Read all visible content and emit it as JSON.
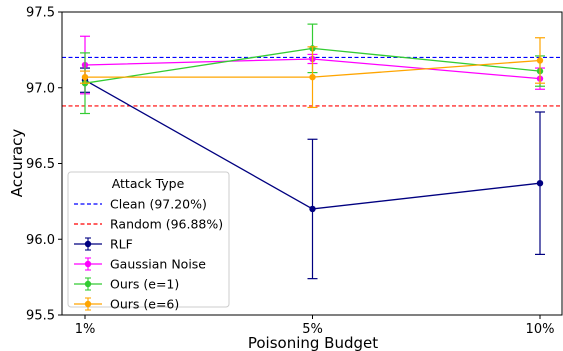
{
  "chart_data": {
    "type": "line",
    "title": "",
    "xlabel": "Poisoning Budget",
    "ylabel": "Accuracy",
    "categories": [
      "1%",
      "5%",
      "10%"
    ],
    "ylim": [
      95.5,
      97.5
    ],
    "yticks": [
      "95.5",
      "96.0",
      "96.5",
      "97.0",
      "97.5"
    ],
    "grid": false,
    "legend": {
      "title": "Attack Type",
      "placement": "lower-left"
    },
    "reference_lines": [
      {
        "name": "Clean (97.20%)",
        "value": 97.2,
        "color": "#0000ff",
        "style": "dashed"
      },
      {
        "name": "Random (96.88%)",
        "value": 96.88,
        "color": "#ff0000",
        "style": "dashed"
      }
    ],
    "series": [
      {
        "name": "RLF",
        "color": "#000080",
        "values": [
          97.05,
          96.2,
          96.37
        ],
        "errors": [
          0.08,
          0.46,
          0.47
        ]
      },
      {
        "name": "Gaussian Noise",
        "color": "#ff00ff",
        "values": [
          97.15,
          97.19,
          97.06
        ],
        "errors": [
          0.19,
          0.03,
          0.07
        ]
      },
      {
        "name": "Ours (e=1)",
        "color": "#33cc33",
        "values": [
          97.03,
          97.26,
          97.11
        ],
        "errors": [
          0.2,
          0.16,
          0.1
        ]
      },
      {
        "name": "Ours (e=6)",
        "color": "#ffa500",
        "values": [
          97.07,
          97.07,
          97.18
        ],
        "errors": [
          0.04,
          0.2,
          0.15
        ]
      }
    ]
  }
}
